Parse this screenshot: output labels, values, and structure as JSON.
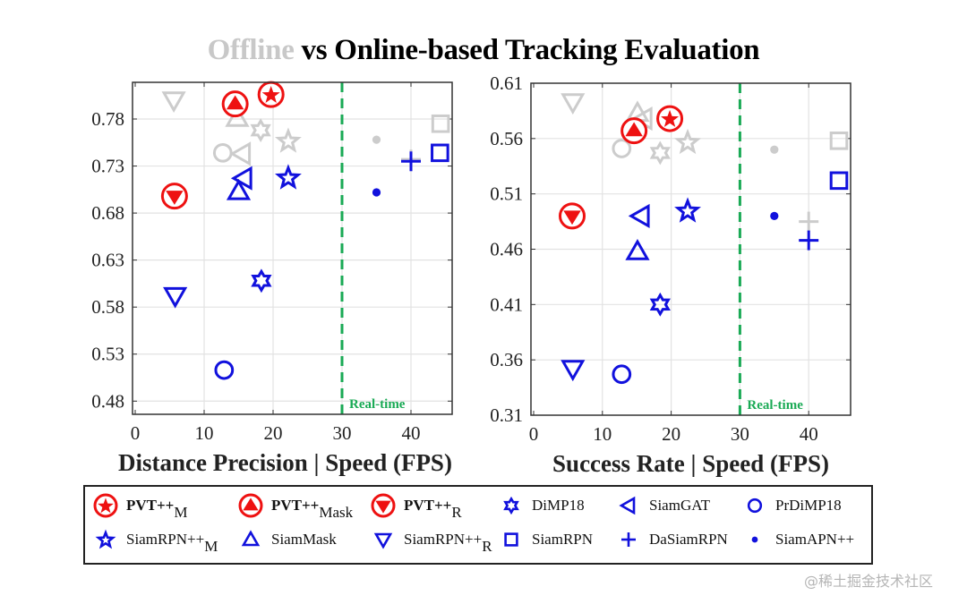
{
  "title": {
    "part1": "Offline",
    "part2": " vs Online-based Tracking Evaluation"
  },
  "watermark": "@稀土掘金技术社区",
  "colors": {
    "pvt": "#ee1111",
    "online": "#1111dd",
    "offline": "#cccccc",
    "realtime": "#1aaa55"
  },
  "legend": {
    "pvt_m": {
      "name": "PVT++",
      "sub": "M",
      "symbol": "circle-star-filled"
    },
    "pvt_mask": {
      "name": "PVT++",
      "sub": "Mask",
      "symbol": "circle-triangle-filled"
    },
    "pvt_r": {
      "name": "PVT++",
      "sub": "R",
      "symbol": "circle-down-triangle-filled"
    },
    "dimp18": {
      "name": "DiMP18",
      "symbol": "hexagram"
    },
    "siamgat": {
      "name": "SiamGAT",
      "symbol": "left-triangle"
    },
    "prdimp18": {
      "name": "PrDiMP18",
      "symbol": "circle"
    },
    "siamrpnpp_m": {
      "name": "SiamRPN++",
      "sub": "M",
      "symbol": "pentagram"
    },
    "siammask": {
      "name": "SiamMask",
      "symbol": "triangle"
    },
    "siamrpnpp_r": {
      "name": "SiamRPN++",
      "sub": "R",
      "symbol": "down-triangle"
    },
    "siamrpn": {
      "name": "SiamRPN",
      "symbol": "square"
    },
    "dasiamrpn": {
      "name": "DaSiamRPN",
      "symbol": "plus"
    },
    "siamapnpp": {
      "name": "SiamAPN++",
      "symbol": "dot"
    }
  },
  "chart_data": [
    {
      "type": "scatter",
      "title": "Offline vs Online-based Tracking Evaluation",
      "xlabel": "Distance Precision | Speed (FPS)",
      "ylabel": "",
      "xlim": [
        0,
        46
      ],
      "ylim": [
        0.466,
        0.819
      ],
      "xticks": [
        0,
        10,
        20,
        30,
        40
      ],
      "yticks": [
        0.48,
        0.53,
        0.58,
        0.63,
        0.68,
        0.73,
        0.78
      ],
      "ytick_labels": [
        "0.48",
        "0.53",
        "0.58",
        "0.63",
        "0.68",
        "0.73",
        "0.78"
      ],
      "grid": true,
      "realtime_line": {
        "x": 30,
        "label": "Real-time"
      },
      "points": [
        {
          "tracker": "SiamRPN++_R",
          "mode": "offline",
          "symbol": "down-triangle",
          "x": 5.6,
          "y": 0.8
        },
        {
          "tracker": "SiamMask",
          "mode": "offline",
          "symbol": "triangle",
          "x": 14.8,
          "y": 0.781
        },
        {
          "tracker": "DiMP18",
          "mode": "offline",
          "symbol": "hexagram",
          "x": 18.2,
          "y": 0.768
        },
        {
          "tracker": "SiamRPN++_M",
          "mode": "offline",
          "symbol": "pentagram",
          "x": 22.2,
          "y": 0.757
        },
        {
          "tracker": "PrDiMP18",
          "mode": "offline",
          "symbol": "circle",
          "x": 12.7,
          "y": 0.744
        },
        {
          "tracker": "SiamGAT",
          "mode": "offline",
          "symbol": "left-triangle",
          "x": 15.5,
          "y": 0.743
        },
        {
          "tracker": "SiamAPN++",
          "mode": "offline",
          "symbol": "dot",
          "x": 35.0,
          "y": 0.758
        },
        {
          "tracker": "SiamRPN",
          "mode": "offline",
          "symbol": "square",
          "x": 44.3,
          "y": 0.775
        },
        {
          "tracker": "DaSiamRPN",
          "mode": "offline",
          "symbol": "plus",
          "x": 40.0,
          "y": 0.737
        },
        {
          "tracker": "SiamRPN++_R",
          "mode": "online",
          "symbol": "down-triangle",
          "x": 5.8,
          "y": 0.592
        },
        {
          "tracker": "SiamMask",
          "mode": "online",
          "symbol": "triangle",
          "x": 15.0,
          "y": 0.703
        },
        {
          "tracker": "DiMP18",
          "mode": "online",
          "symbol": "hexagram",
          "x": 18.3,
          "y": 0.608
        },
        {
          "tracker": "SiamRPN++_M",
          "mode": "online",
          "symbol": "pentagram",
          "x": 22.2,
          "y": 0.718
        },
        {
          "tracker": "PrDiMP18",
          "mode": "online",
          "symbol": "circle",
          "x": 12.9,
          "y": 0.513
        },
        {
          "tracker": "SiamGAT",
          "mode": "online",
          "symbol": "left-triangle",
          "x": 15.7,
          "y": 0.717
        },
        {
          "tracker": "SiamAPN++",
          "mode": "online",
          "symbol": "dot",
          "x": 35.0,
          "y": 0.702
        },
        {
          "tracker": "SiamRPN",
          "mode": "online",
          "symbol": "square",
          "x": 44.2,
          "y": 0.744
        },
        {
          "tracker": "DaSiamRPN",
          "mode": "online",
          "symbol": "plus",
          "x": 40.0,
          "y": 0.735
        },
        {
          "tracker": "PVT++_M",
          "mode": "pvt",
          "symbol": "circle-star-filled",
          "x": 19.7,
          "y": 0.806
        },
        {
          "tracker": "PVT++_Mask",
          "mode": "pvt",
          "symbol": "circle-triangle-filled",
          "x": 14.5,
          "y": 0.796
        },
        {
          "tracker": "PVT++_R",
          "mode": "pvt",
          "symbol": "circle-down-triangle-filled",
          "x": 5.7,
          "y": 0.698
        }
      ]
    },
    {
      "type": "scatter",
      "title": "Offline vs Online-based Tracking Evaluation",
      "xlabel": "Success Rate | Speed (FPS)",
      "ylabel": "",
      "xlim": [
        0,
        46
      ],
      "ylim": [
        0.31,
        0.61
      ],
      "xticks": [
        0,
        10,
        20,
        30,
        40
      ],
      "yticks": [
        0.31,
        0.36,
        0.41,
        0.46,
        0.51,
        0.56,
        0.61
      ],
      "ytick_labels": [
        "0.31",
        "0.36",
        "0.41",
        "0.46",
        "0.51",
        "0.56",
        "0.61"
      ],
      "grid": true,
      "realtime_line": {
        "x": 30,
        "label": "Real-time"
      },
      "points": [
        {
          "tracker": "SiamRPN++_R",
          "mode": "offline",
          "symbol": "down-triangle",
          "x": 5.7,
          "y": 0.593
        },
        {
          "tracker": "SiamMask",
          "mode": "offline",
          "symbol": "triangle",
          "x": 15.1,
          "y": 0.583
        },
        {
          "tracker": "SiamGAT",
          "mode": "offline",
          "symbol": "left-triangle",
          "x": 16.0,
          "y": 0.578
        },
        {
          "tracker": "PrDiMP18",
          "mode": "offline",
          "symbol": "circle",
          "x": 12.8,
          "y": 0.551
        },
        {
          "tracker": "DiMP18",
          "mode": "offline",
          "symbol": "hexagram",
          "x": 18.4,
          "y": 0.547
        },
        {
          "tracker": "SiamRPN++_M",
          "mode": "offline",
          "symbol": "pentagram",
          "x": 22.4,
          "y": 0.557
        },
        {
          "tracker": "SiamAPN++",
          "mode": "offline",
          "symbol": "dot",
          "x": 35.0,
          "y": 0.55
        },
        {
          "tracker": "SiamRPN",
          "mode": "offline",
          "symbol": "square",
          "x": 44.4,
          "y": 0.558
        },
        {
          "tracker": "DaSiamRPN",
          "mode": "offline",
          "symbol": "plus",
          "x": 40.0,
          "y": 0.485
        },
        {
          "tracker": "SiamRPN++_R",
          "mode": "online",
          "symbol": "down-triangle",
          "x": 5.7,
          "y": 0.352
        },
        {
          "tracker": "SiamMask",
          "mode": "online",
          "symbol": "triangle",
          "x": 15.1,
          "y": 0.458
        },
        {
          "tracker": "DiMP18",
          "mode": "online",
          "symbol": "hexagram",
          "x": 18.4,
          "y": 0.41
        },
        {
          "tracker": "SiamRPN++_M",
          "mode": "online",
          "symbol": "pentagram",
          "x": 22.4,
          "y": 0.495
        },
        {
          "tracker": "PrDiMP18",
          "mode": "online",
          "symbol": "circle",
          "x": 12.8,
          "y": 0.347
        },
        {
          "tracker": "SiamGAT",
          "mode": "online",
          "symbol": "left-triangle",
          "x": 15.6,
          "y": 0.49
        },
        {
          "tracker": "SiamAPN++",
          "mode": "online",
          "symbol": "dot",
          "x": 35.0,
          "y": 0.49
        },
        {
          "tracker": "SiamRPN",
          "mode": "online",
          "symbol": "square",
          "x": 44.4,
          "y": 0.522
        },
        {
          "tracker": "DaSiamRPN",
          "mode": "online",
          "symbol": "plus",
          "x": 40.0,
          "y": 0.468
        },
        {
          "tracker": "PVT++_M",
          "mode": "pvt",
          "symbol": "circle-star-filled",
          "x": 19.8,
          "y": 0.578
        },
        {
          "tracker": "PVT++_Mask",
          "mode": "pvt",
          "symbol": "circle-triangle-filled",
          "x": 14.6,
          "y": 0.567
        },
        {
          "tracker": "PVT++_R",
          "mode": "pvt",
          "symbol": "circle-down-triangle-filled",
          "x": 5.6,
          "y": 0.49
        }
      ]
    }
  ]
}
